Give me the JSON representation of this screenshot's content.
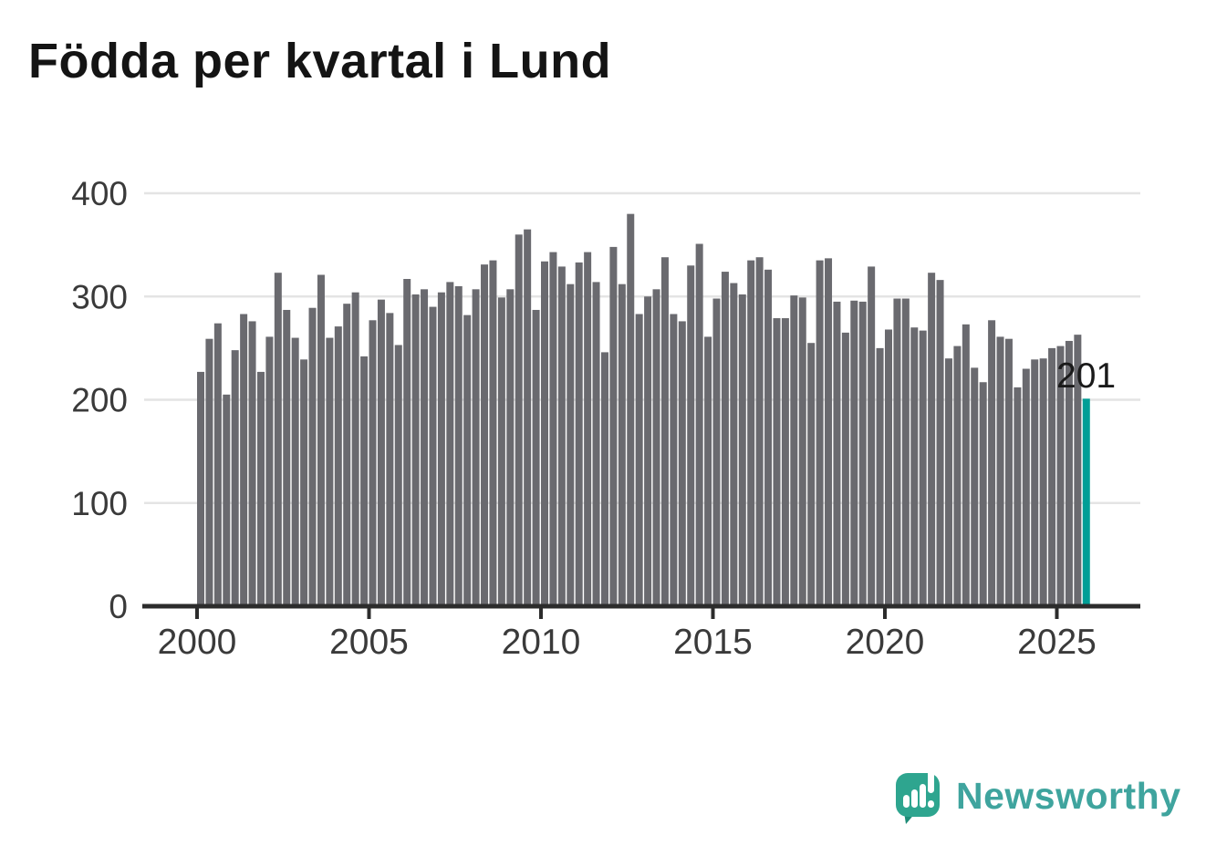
{
  "title": "Födda per kvartal i Lund",
  "annotation": {
    "last_value_label": "201"
  },
  "logo": {
    "text": "Newsworthy",
    "icon": "speech-bubble-with-bar-chart-and-exclamation"
  },
  "colors": {
    "bar": "#6a6a6f",
    "highlight": "#009e96",
    "grid": "#e4e4e4",
    "axis": "#2c2c2c",
    "tick_text": "#3a3a3a",
    "annotation_text": "#1a1a1a",
    "logo_bubble": "#2ea58f",
    "logo_tail": "#1e8c77",
    "logo_text": "#3fa49e",
    "title_text": "#141414"
  },
  "chart_data": {
    "type": "bar",
    "title": "Födda per kvartal i Lund",
    "xlabel": "",
    "ylabel": "",
    "ylim": [
      0,
      400
    ],
    "grid": true,
    "legend": false,
    "x_start": "2000-Q1",
    "x_end": "2025-Q4",
    "frequency": "quarterly",
    "y_ticks": [
      0,
      100,
      200,
      300,
      400
    ],
    "x_ticks": [
      "2000",
      "2005",
      "2010",
      "2015",
      "2020",
      "2025"
    ],
    "highlight_last_bar": true,
    "last_value_label": "201",
    "series": [
      {
        "name": "Födda per kvartal",
        "values": [
          227,
          259,
          274,
          205,
          248,
          283,
          276,
          227,
          261,
          323,
          287,
          260,
          239,
          289,
          321,
          260,
          271,
          293,
          304,
          242,
          277,
          297,
          284,
          253,
          317,
          302,
          307,
          290,
          304,
          314,
          310,
          282,
          307,
          331,
          335,
          299,
          307,
          360,
          365,
          287,
          334,
          343,
          329,
          312,
          333,
          343,
          314,
          246,
          348,
          312,
          380,
          283,
          300,
          307,
          338,
          283,
          276,
          330,
          351,
          261,
          298,
          324,
          313,
          302,
          335,
          338,
          326,
          279,
          279,
          301,
          299,
          255,
          335,
          337,
          295,
          265,
          296,
          295,
          329,
          250,
          268,
          298,
          298,
          270,
          267,
          323,
          316,
          240,
          252,
          273,
          231,
          217,
          277,
          261,
          259,
          212,
          230,
          239,
          240,
          250,
          252,
          257,
          263,
          201
        ]
      }
    ]
  }
}
